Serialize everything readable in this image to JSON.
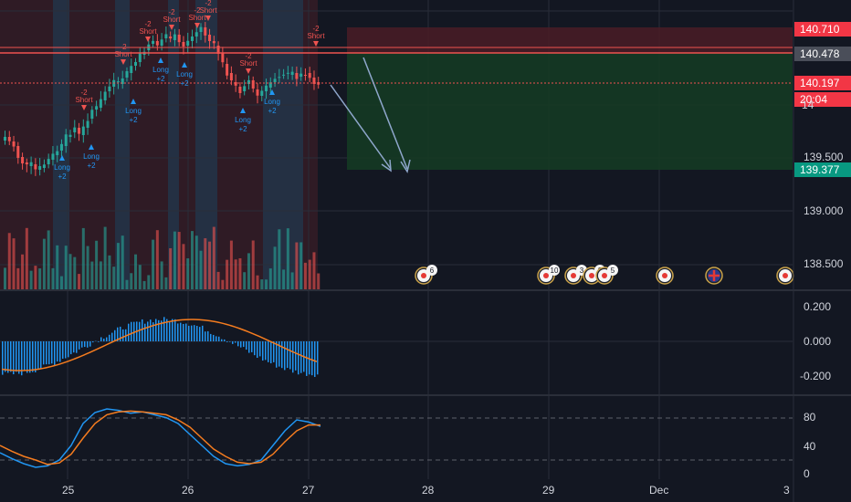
{
  "price_axis": {
    "ticks": [
      "139.000",
      "138.500"
    ],
    "partial_tick": "14",
    "labels": {
      "stop": "140.710",
      "entry": "140.478",
      "current": "140.197",
      "countdown": "20:04",
      "target": "139.377",
      "target_faint": "139.500"
    }
  },
  "macd_axis": {
    "ticks": [
      "0.200",
      "0.000",
      "-0.200"
    ]
  },
  "stoch_axis": {
    "ticks": [
      "80",
      "40",
      "0"
    ]
  },
  "time_axis": {
    "ticks": [
      "25",
      "26",
      "27",
      "28",
      "29",
      "Dec",
      "3"
    ]
  },
  "signals": {
    "short_label": "Short",
    "long_label": "Long",
    "short_value": "-2",
    "long_value": "+2"
  },
  "events": [
    {
      "icon": "japan-flag-icon",
      "count": "6"
    },
    {
      "icon": "japan-flag-icon",
      "count": "10"
    },
    {
      "icon": "japan-flag-icon",
      "count": "3"
    },
    {
      "icon": "japan-flag-icon",
      "count": "2"
    },
    {
      "icon": "japan-flag-icon",
      "count": "5"
    },
    {
      "icon": "japan-flag-icon",
      "count": ""
    },
    {
      "icon": "uk-flag-icon",
      "count": ""
    },
    {
      "icon": "japan-flag-icon",
      "count": ""
    }
  ],
  "colors": {
    "background": "#131722",
    "up": "#26a69a",
    "down": "#ef5350",
    "stop_zone": "#5a1f2a",
    "target_zone": "#17402a",
    "macd_signal": "#f57c1f",
    "macd_hist": "#2196f3",
    "stoch_k": "#2196f3",
    "stoch_d": "#f57c1f",
    "arrow": "#8fa7cc"
  }
}
